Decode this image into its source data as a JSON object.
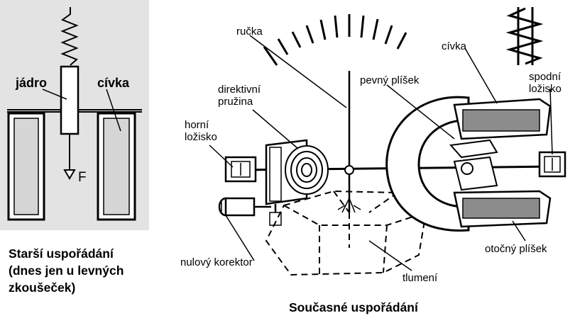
{
  "left_diagram": {
    "labels": {
      "core": "jádro",
      "coil": "cívka",
      "force": "F"
    },
    "caption_lines": [
      "Starší uspořádání",
      "(dnes jen u levných",
      "zkoušeček)"
    ]
  },
  "right_diagram": {
    "labels": {
      "handle": "ručka",
      "directive_spring": [
        "direktivní",
        "pružina"
      ],
      "fixed_plate": "pevný plíšek",
      "coil": "cívka",
      "upper_bearing": [
        "horní",
        "ložisko"
      ],
      "lower_bearing": [
        "spodní",
        "ložisko"
      ],
      "zero_corrector": "nulový korektor",
      "rotating_plate": "otočný plíšek",
      "damping": "tlumení"
    },
    "caption": "Současné uspořádání"
  }
}
